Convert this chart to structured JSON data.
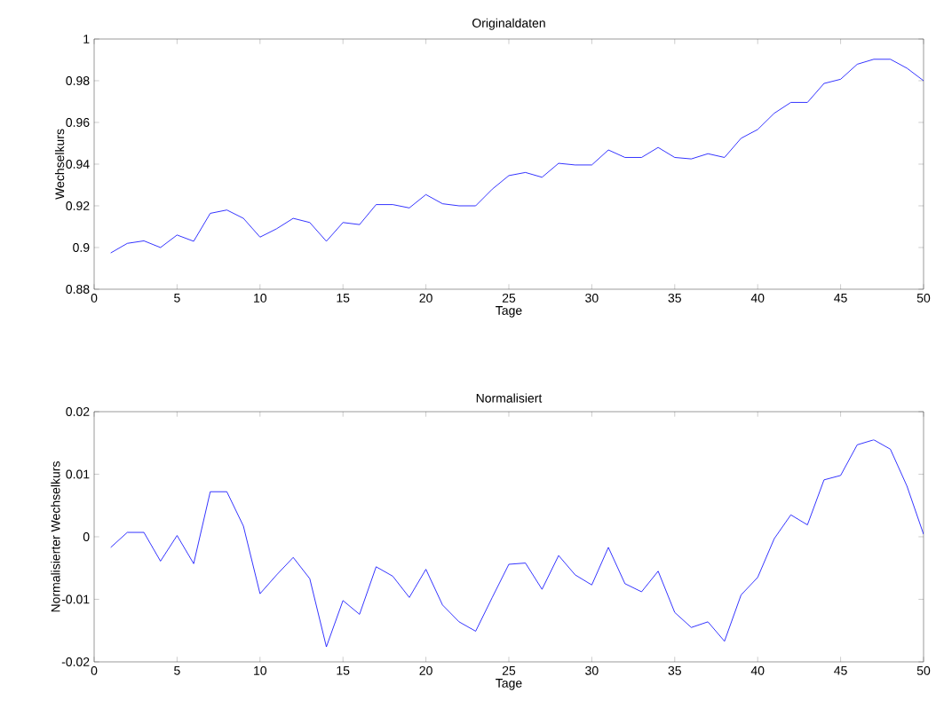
{
  "chart_data": [
    {
      "type": "line",
      "title": "Originaldaten",
      "xlabel": "Tage",
      "ylabel": "Wechselkurs",
      "color": "#0000ff",
      "x": [
        1,
        2,
        3,
        4,
        5,
        6,
        7,
        8,
        9,
        10,
        11,
        12,
        13,
        14,
        15,
        16,
        17,
        18,
        19,
        20,
        21,
        22,
        23,
        24,
        25,
        26,
        27,
        28,
        29,
        30,
        31,
        32,
        33,
        34,
        35,
        36,
        37,
        38,
        39,
        40,
        41,
        42,
        43,
        44,
        45,
        46,
        47,
        48,
        49,
        50
      ],
      "values": [
        0.8974,
        0.902,
        0.9032,
        0.9,
        0.906,
        0.903,
        0.9164,
        0.918,
        0.914,
        0.905,
        0.909,
        0.914,
        0.912,
        0.903,
        0.912,
        0.911,
        0.9206,
        0.9206,
        0.919,
        0.9254,
        0.921,
        0.92,
        0.92,
        0.928,
        0.9345,
        0.936,
        0.9337,
        0.9404,
        0.9396,
        0.9396,
        0.9468,
        0.9432,
        0.9432,
        0.948,
        0.9432,
        0.9425,
        0.945,
        0.9432,
        0.9524,
        0.9566,
        0.9644,
        0.9696,
        0.9696,
        0.9787,
        0.9807,
        0.9879,
        0.9903,
        0.9903,
        0.986,
        0.98
      ],
      "xlim": [
        0,
        50
      ],
      "ylim": [
        0.88,
        1
      ],
      "xticks": [
        0,
        5,
        10,
        15,
        20,
        25,
        30,
        35,
        40,
        45,
        50
      ],
      "yticks": [
        0.88,
        0.9,
        0.92,
        0.94,
        0.96,
        0.98,
        1
      ]
    },
    {
      "type": "line",
      "title": "Normalisiert",
      "xlabel": "Tage",
      "ylabel": "Normalisierter Wechselkurs",
      "color": "#0000ff",
      "x": [
        1,
        2,
        3,
        4,
        5,
        6,
        7,
        8,
        9,
        10,
        11,
        12,
        13,
        14,
        15,
        16,
        17,
        18,
        19,
        20,
        21,
        22,
        23,
        24,
        25,
        26,
        27,
        28,
        29,
        30,
        31,
        32,
        33,
        34,
        35,
        36,
        37,
        38,
        39,
        40,
        41,
        42,
        43,
        44,
        45,
        46,
        47,
        48,
        49,
        50
      ],
      "values": [
        -0.0017,
        0.0007,
        0.0007,
        -0.0039,
        0.0002,
        -0.0043,
        0.0072,
        0.0072,
        0.0017,
        -0.0091,
        -0.0061,
        -0.0033,
        -0.0067,
        -0.0176,
        -0.0102,
        -0.0124,
        -0.0048,
        -0.0063,
        -0.0097,
        -0.0052,
        -0.0109,
        -0.0136,
        -0.0151,
        -0.0097,
        -0.0044,
        -0.0042,
        -0.0084,
        -0.003,
        -0.0061,
        -0.0077,
        -0.0017,
        -0.0075,
        -0.0088,
        -0.0055,
        -0.0121,
        -0.0145,
        -0.0136,
        -0.0167,
        -0.0093,
        -0.0065,
        -0.0003,
        0.0035,
        0.0019,
        0.0091,
        0.0098,
        0.0147,
        0.0155,
        0.014,
        0.0081,
        0.0004
      ],
      "xlim": [
        0,
        50
      ],
      "ylim": [
        -0.02,
        0.02
      ],
      "xticks": [
        0,
        5,
        10,
        15,
        20,
        25,
        30,
        35,
        40,
        45,
        50
      ],
      "yticks": [
        -0.02,
        -0.01,
        0,
        0.01,
        0.02
      ]
    }
  ]
}
